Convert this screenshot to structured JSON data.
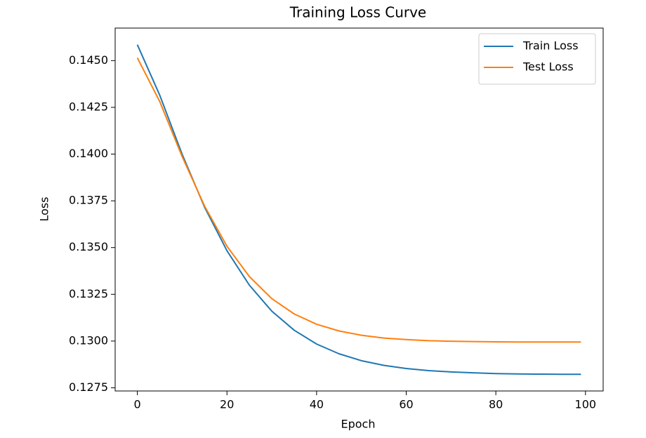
{
  "chart_data": {
    "type": "line",
    "title": "Training Loss Curve",
    "x_label": "Epoch",
    "y_label": "Loss",
    "x": [
      0,
      5,
      10,
      15,
      20,
      25,
      30,
      35,
      40,
      45,
      50,
      55,
      60,
      65,
      70,
      75,
      80,
      85,
      90,
      95,
      99
    ],
    "series": [
      {
        "name": "Train Loss",
        "color": "#1f77b4",
        "values": [
          0.14585,
          0.14315,
          0.13999,
          0.13716,
          0.13483,
          0.13299,
          0.1316,
          0.13058,
          0.12984,
          0.12932,
          0.12895,
          0.1287,
          0.12853,
          0.12842,
          0.12835,
          0.1283,
          0.12826,
          0.12824,
          0.12823,
          0.12822,
          0.12822
        ]
      },
      {
        "name": "Test Loss",
        "color": "#ff7f0e",
        "values": [
          0.14515,
          0.14281,
          0.13987,
          0.13722,
          0.13507,
          0.13345,
          0.13227,
          0.13145,
          0.1309,
          0.13054,
          0.13031,
          0.13016,
          0.13008,
          0.13002,
          0.12999,
          0.12997,
          0.12996,
          0.12995,
          0.12995,
          0.12995,
          0.12995
        ]
      }
    ],
    "xlim": [
      -4.95,
      103.95
    ],
    "xticks": [
      0,
      20,
      40,
      60,
      80,
      100
    ],
    "ylim": [
      0.12733,
      0.14674
    ],
    "yticks": [
      0.1275,
      {
        "value": 0.13,
        "label": "0.1300"
      },
      0.1325,
      {
        "value": 0.135,
        "label": "0.1350"
      },
      0.1375,
      {
        "value": 0.14,
        "label": "0.1400"
      },
      0.1425,
      {
        "value": 0.145,
        "label": "0.1450"
      }
    ],
    "grid": false,
    "legend": "upper right"
  }
}
